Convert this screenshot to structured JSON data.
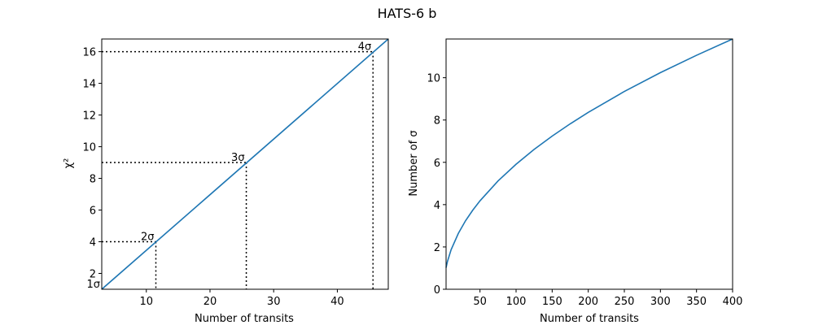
{
  "figure": {
    "title": "HATS-6 b"
  },
  "chart_data": [
    {
      "type": "line",
      "xlabel": "Number of transits",
      "ylabel": "χ²",
      "xlim": [
        3,
        48
      ],
      "ylim": [
        1,
        16.8
      ],
      "xticks": [
        10,
        20,
        30,
        40
      ],
      "yticks": [
        2,
        4,
        6,
        8,
        10,
        12,
        14,
        16
      ],
      "grid": false,
      "color": "#1f77b4",
      "series": [
        {
          "x": [
            3,
            48
          ],
          "y": [
            1,
            16.8
          ]
        }
      ],
      "sigma_markers": [
        {
          "label": "1σ",
          "n_transits": 3.0,
          "chi2": 1
        },
        {
          "label": "2σ",
          "n_transits": 11.5,
          "chi2": 4
        },
        {
          "label": "3σ",
          "n_transits": 25.7,
          "chi2": 9
        },
        {
          "label": "4σ",
          "n_transits": 45.6,
          "chi2": 16
        }
      ]
    },
    {
      "type": "line",
      "xlabel": "Number of transits",
      "ylabel": "Number of σ",
      "xlim": [
        3,
        400
      ],
      "ylim": [
        0,
        11.83
      ],
      "xticks": [
        50,
        100,
        150,
        200,
        250,
        300,
        350,
        400
      ],
      "yticks": [
        0,
        2,
        4,
        6,
        8,
        10
      ],
      "grid": false,
      "color": "#1f77b4",
      "relation": "sigma = sqrt(n_transits / 2.86)",
      "series": [
        {
          "x": [
            3,
            5,
            10,
            20,
            30,
            40,
            50,
            75,
            100,
            125,
            150,
            175,
            200,
            250,
            300,
            350,
            400
          ],
          "y": [
            1.02,
            1.32,
            1.87,
            2.64,
            3.24,
            3.74,
            4.18,
            5.12,
            5.91,
            6.61,
            7.24,
            7.82,
            8.36,
            9.35,
            10.24,
            11.06,
            11.83
          ]
        }
      ]
    }
  ]
}
